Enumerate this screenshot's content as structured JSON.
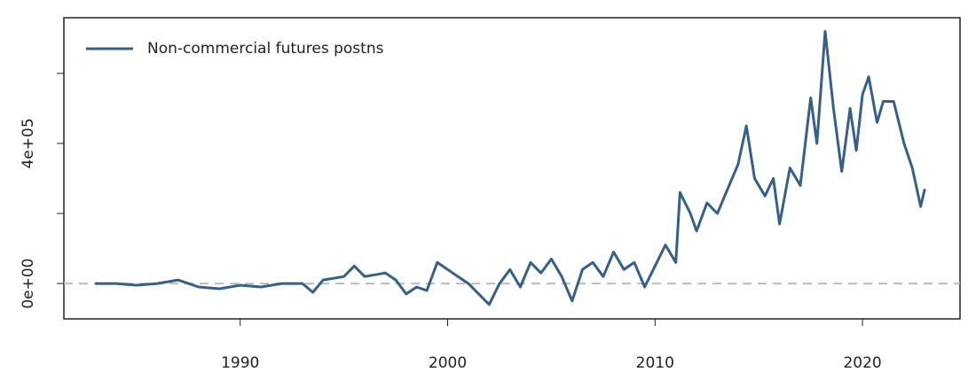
{
  "chart_data": {
    "type": "line",
    "x": [
      1983.0,
      1984.0,
      1985.0,
      1986.0,
      1987.0,
      1988.0,
      1989.0,
      1990.0,
      1991.0,
      1992.0,
      1993.0,
      1993.5,
      1994.0,
      1995.0,
      1995.5,
      1996.0,
      1997.0,
      1997.5,
      1998.0,
      1998.5,
      1999.0,
      1999.5,
      2000.0,
      2000.5,
      2001.0,
      2001.5,
      2002.0,
      2002.5,
      2003.0,
      2003.5,
      2004.0,
      2004.5,
      2005.0,
      2005.5,
      2006.0,
      2006.5,
      2007.0,
      2007.5,
      2008.0,
      2008.5,
      2009.0,
      2009.5,
      2010.0,
      2010.5,
      2011.0,
      2011.2,
      2011.7,
      2012.0,
      2012.5,
      2013.0,
      2013.5,
      2014.0,
      2014.4,
      2014.8,
      2015.3,
      2015.7,
      2016.0,
      2016.5,
      2017.0,
      2017.5,
      2017.8,
      2018.2,
      2018.6,
      2019.0,
      2019.4,
      2019.7,
      2020.0,
      2020.3,
      2020.7,
      2021.0,
      2021.5,
      2022.0,
      2022.4,
      2022.8,
      2023.0
    ],
    "series": [
      {
        "name": "Non-commercial futures postns",
        "color": "#34608a",
        "values": [
          0,
          0,
          -5000,
          0,
          10000,
          -10000,
          -15000,
          -5000,
          -10000,
          0,
          0,
          -25000,
          10000,
          20000,
          50000,
          20000,
          30000,
          10000,
          -30000,
          -10000,
          -20000,
          60000,
          40000,
          20000,
          0,
          -30000,
          -60000,
          0,
          40000,
          -10000,
          60000,
          30000,
          70000,
          20000,
          -50000,
          40000,
          60000,
          20000,
          90000,
          40000,
          60000,
          -10000,
          50000,
          110000,
          60000,
          260000,
          200000,
          150000,
          230000,
          200000,
          270000,
          340000,
          450000,
          300000,
          250000,
          300000,
          170000,
          330000,
          280000,
          530000,
          400000,
          720000,
          500000,
          320000,
          500000,
          380000,
          540000,
          590000,
          460000,
          520000,
          520000,
          400000,
          330000,
          220000,
          270000
        ]
      }
    ],
    "xlim": [
      1981.5,
      2024.7
    ],
    "xticks": [
      1990,
      2000,
      2010,
      2020
    ],
    "ylim": [
      -101000,
      759000
    ],
    "yticks": [
      {
        "value": 0,
        "label": "0e+00"
      },
      {
        "value": 200000,
        "label": null
      },
      {
        "value": 400000,
        "label": "4e+05"
      },
      {
        "value": 600000,
        "label": null
      }
    ],
    "hline": 0,
    "legend": "top-left"
  }
}
